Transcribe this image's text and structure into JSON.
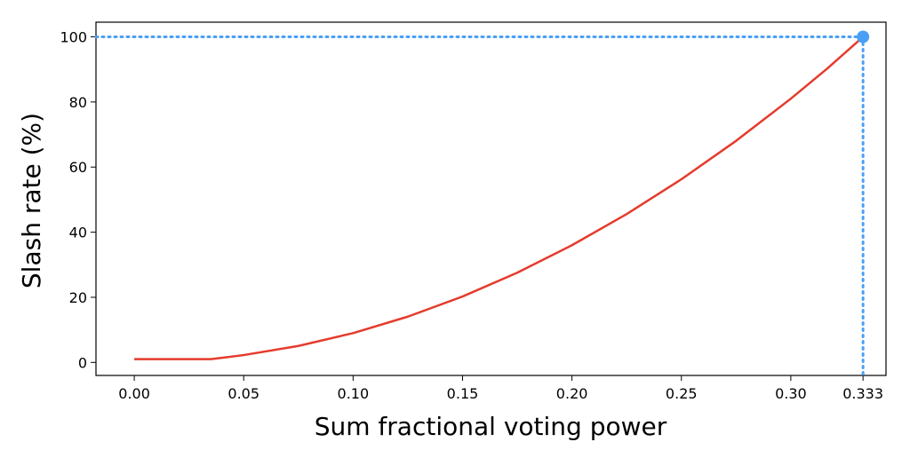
{
  "chart_data": {
    "type": "line",
    "title": "",
    "xlabel": "Sum fractional voting power",
    "ylabel": "Slash rate (%)",
    "xlim": [
      -0.0175,
      0.3435
    ],
    "ylim": [
      -4,
      104.5
    ],
    "x_ticks": [
      {
        "value": 0.0,
        "label": "0.00"
      },
      {
        "value": 0.05,
        "label": "0.05"
      },
      {
        "value": 0.1,
        "label": "0.10"
      },
      {
        "value": 0.15,
        "label": "0.15"
      },
      {
        "value": 0.2,
        "label": "0.20"
      },
      {
        "value": 0.25,
        "label": "0.25"
      },
      {
        "value": 0.3,
        "label": "0.30"
      },
      {
        "value": 0.333,
        "label": "0.333"
      }
    ],
    "y_ticks": [
      {
        "value": 0,
        "label": "0"
      },
      {
        "value": 20,
        "label": "20"
      },
      {
        "value": 40,
        "label": "40"
      },
      {
        "value": 60,
        "label": "60"
      },
      {
        "value": 80,
        "label": "80"
      },
      {
        "value": 100,
        "label": "100"
      }
    ],
    "grid": false,
    "series": [
      {
        "color": "#e53b2c",
        "x": [
          0.0,
          0.01,
          0.02,
          0.03,
          0.035,
          0.05,
          0.075,
          0.1,
          0.125,
          0.15,
          0.175,
          0.2,
          0.225,
          0.25,
          0.275,
          0.3,
          0.3165,
          0.333
        ],
        "y": [
          1,
          1,
          1,
          1,
          1,
          2.25,
          5.06,
          9.0,
          14.06,
          20.25,
          27.56,
          36.0,
          45.56,
          56.25,
          68.06,
          81.0,
          90.17,
          100
        ]
      }
    ],
    "highlight_point": {
      "x": 0.333,
      "y": 100,
      "color": "#4a9ff5"
    },
    "reference_lines_color": "#4a9ff5"
  }
}
